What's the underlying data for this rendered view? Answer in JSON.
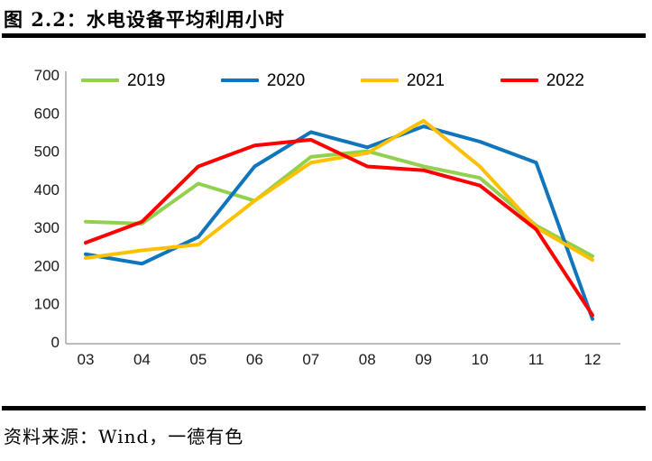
{
  "page": {
    "title": "图 2.2：水电设备平均利用小时",
    "source": "资料来源：Wind，一德有色"
  },
  "chart_data": {
    "type": "line",
    "title": "水电设备平均利用小时",
    "categories": [
      "03",
      "04",
      "05",
      "06",
      "07",
      "08",
      "09",
      "10",
      "11",
      "12"
    ],
    "series": [
      {
        "name": "2019",
        "color": "#92D050",
        "values": [
          315,
          310,
          415,
          370,
          485,
          500,
          460,
          430,
          305,
          225
        ]
      },
      {
        "name": "2020",
        "color": "#0F75BC",
        "values": [
          230,
          205,
          275,
          460,
          550,
          510,
          565,
          525,
          470,
          60
        ]
      },
      {
        "name": "2021",
        "color": "#FFC000",
        "values": [
          220,
          240,
          255,
          370,
          470,
          495,
          580,
          460,
          300,
          215
        ]
      },
      {
        "name": "2022",
        "color": "#FF0000",
        "values": [
          260,
          315,
          460,
          515,
          530,
          460,
          450,
          410,
          295,
          70
        ]
      }
    ],
    "ylim": [
      0,
      700
    ],
    "yticks": [
      0,
      100,
      200,
      300,
      400,
      500,
      600,
      700
    ],
    "grid": false,
    "legend_position": "top",
    "axis_color": "#a6a6a6"
  }
}
